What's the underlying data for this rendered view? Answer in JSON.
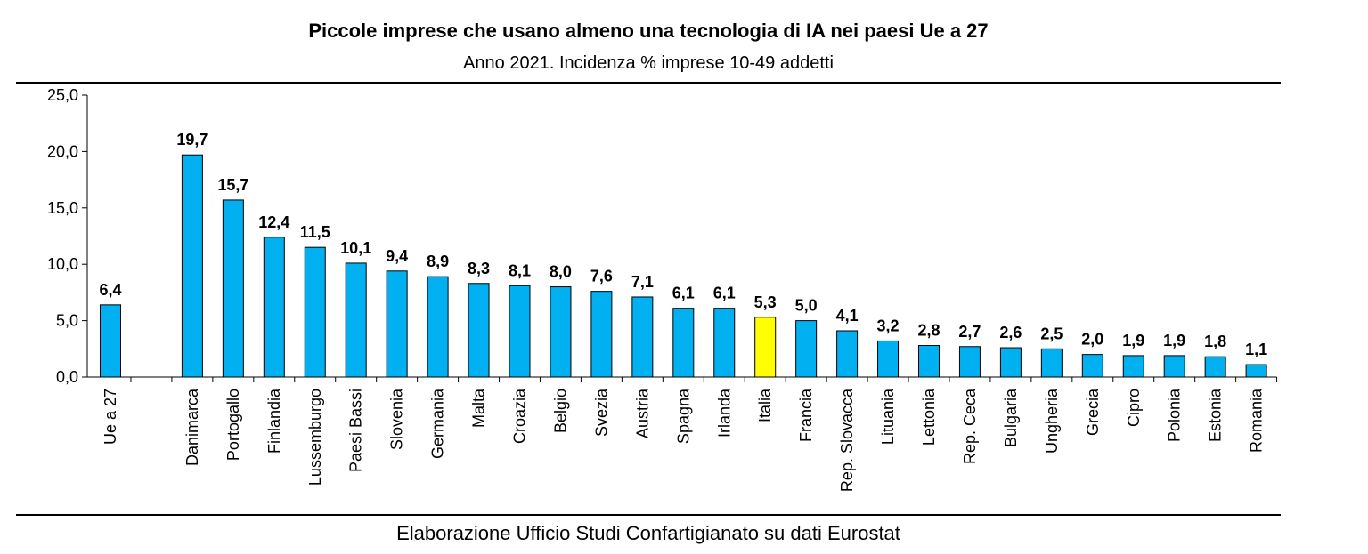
{
  "chart_data": {
    "type": "bar",
    "title": "Piccole imprese che usano almeno una tecnologia di IA nei paesi Ue a 27",
    "subtitle": "Anno 2021. Incidenza % imprese 10-49 addetti",
    "source": "Elaborazione Ufficio Studi Confartigianato su dati Eurostat",
    "categories": [
      "Ue a 27",
      "",
      "Danimarca",
      "Portogallo",
      "Finlandia",
      "Lussemburgo",
      "Paesi Bassi",
      "Slovenia",
      "Germania",
      "Malta",
      "Croazia",
      "Belgio",
      "Svezia",
      "Austria",
      "Spagna",
      "Irlanda",
      "Italia",
      "Francia",
      "Rep. Slovacca",
      "Lituania",
      "Lettonia",
      "Rep. Ceca",
      "Bulgaria",
      "Ungheria",
      "Grecia",
      "Cipro",
      "Polonia",
      "Estonia",
      "Romania"
    ],
    "values": [
      6.4,
      null,
      19.7,
      15.7,
      12.4,
      11.5,
      10.1,
      9.4,
      8.9,
      8.3,
      8.1,
      8.0,
      7.6,
      7.1,
      6.1,
      6.1,
      5.3,
      5.0,
      4.1,
      3.2,
      2.8,
      2.7,
      2.6,
      2.5,
      2.0,
      1.9,
      1.9,
      1.8,
      1.1
    ],
    "value_labels": [
      "6,4",
      "",
      "19,7",
      "15,7",
      "12,4",
      "11,5",
      "10,1",
      "9,4",
      "8,9",
      "8,3",
      "8,1",
      "8,0",
      "7,6",
      "7,1",
      "6,1",
      "6,1",
      "5,3",
      "5,0",
      "4,1",
      "3,2",
      "2,8",
      "2,7",
      "2,6",
      "2,5",
      "2,0",
      "1,9",
      "1,9",
      "1,8",
      "1,1"
    ],
    "highlight_category": "Italia",
    "ylim": [
      0,
      25
    ],
    "yticks": [
      0,
      5,
      10,
      15,
      20,
      25
    ],
    "ytick_labels": [
      "0,0",
      "5,0",
      "10,0",
      "15,0",
      "20,0",
      "25,0"
    ],
    "xlabel": "",
    "ylabel": "",
    "grid": false,
    "colors": {
      "bar": "#00B0F0",
      "highlight": "#FFFF00",
      "outline": "#000000"
    }
  }
}
